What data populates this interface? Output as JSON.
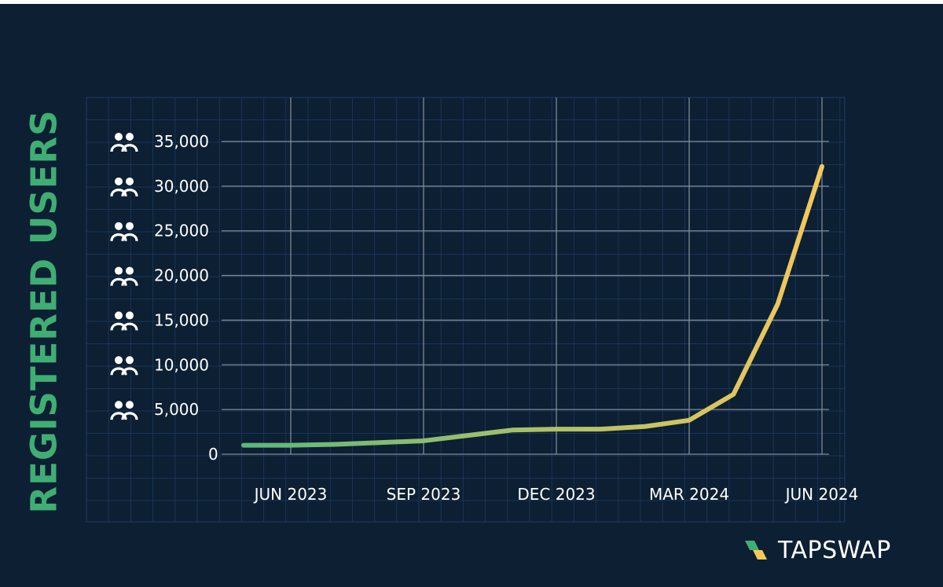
{
  "chart_data": {
    "type": "line",
    "ylabel": "REGISTERED USERS",
    "xlabel": "",
    "ylim": [
      0,
      35000
    ],
    "yticks": [
      0,
      5000,
      10000,
      15000,
      20000,
      25000,
      30000,
      35000
    ],
    "ytick_labels": [
      "0",
      "5,000",
      "10,000",
      "15,000",
      "20,000",
      "25,000",
      "30,000",
      "35,000"
    ],
    "xticks": [
      "2023-06",
      "2023-09",
      "2023-12",
      "2024-03",
      "2024-06"
    ],
    "xtick_labels": [
      "JUN 2023",
      "SEP 2023",
      "DEC 2023",
      "MAR 2024",
      "JUN 2024"
    ],
    "grid": true,
    "series": [
      {
        "x": [
          "2023-06",
          "2023-07",
          "2023-08",
          "2023-09",
          "2023-10",
          "2023-11",
          "2023-12",
          "2024-01",
          "2024-02",
          "2024-03",
          "2024-04",
          "2024-05",
          "2024-06"
        ],
        "values": [
          1000,
          1100,
          1300,
          1500,
          2100,
          2700,
          2800,
          2800,
          3100,
          3800,
          6700,
          16800,
          32200
        ],
        "color_start": "#5cb87a",
        "color_end": "#f5c85a"
      }
    ],
    "y_icon": "users-icon"
  },
  "brand": {
    "name": "TAPSWAP",
    "icon": "tapswap-logo-icon"
  },
  "colors": {
    "background": "#0c1f33",
    "grid": "#7f8a96",
    "accent": "#3fae73"
  }
}
